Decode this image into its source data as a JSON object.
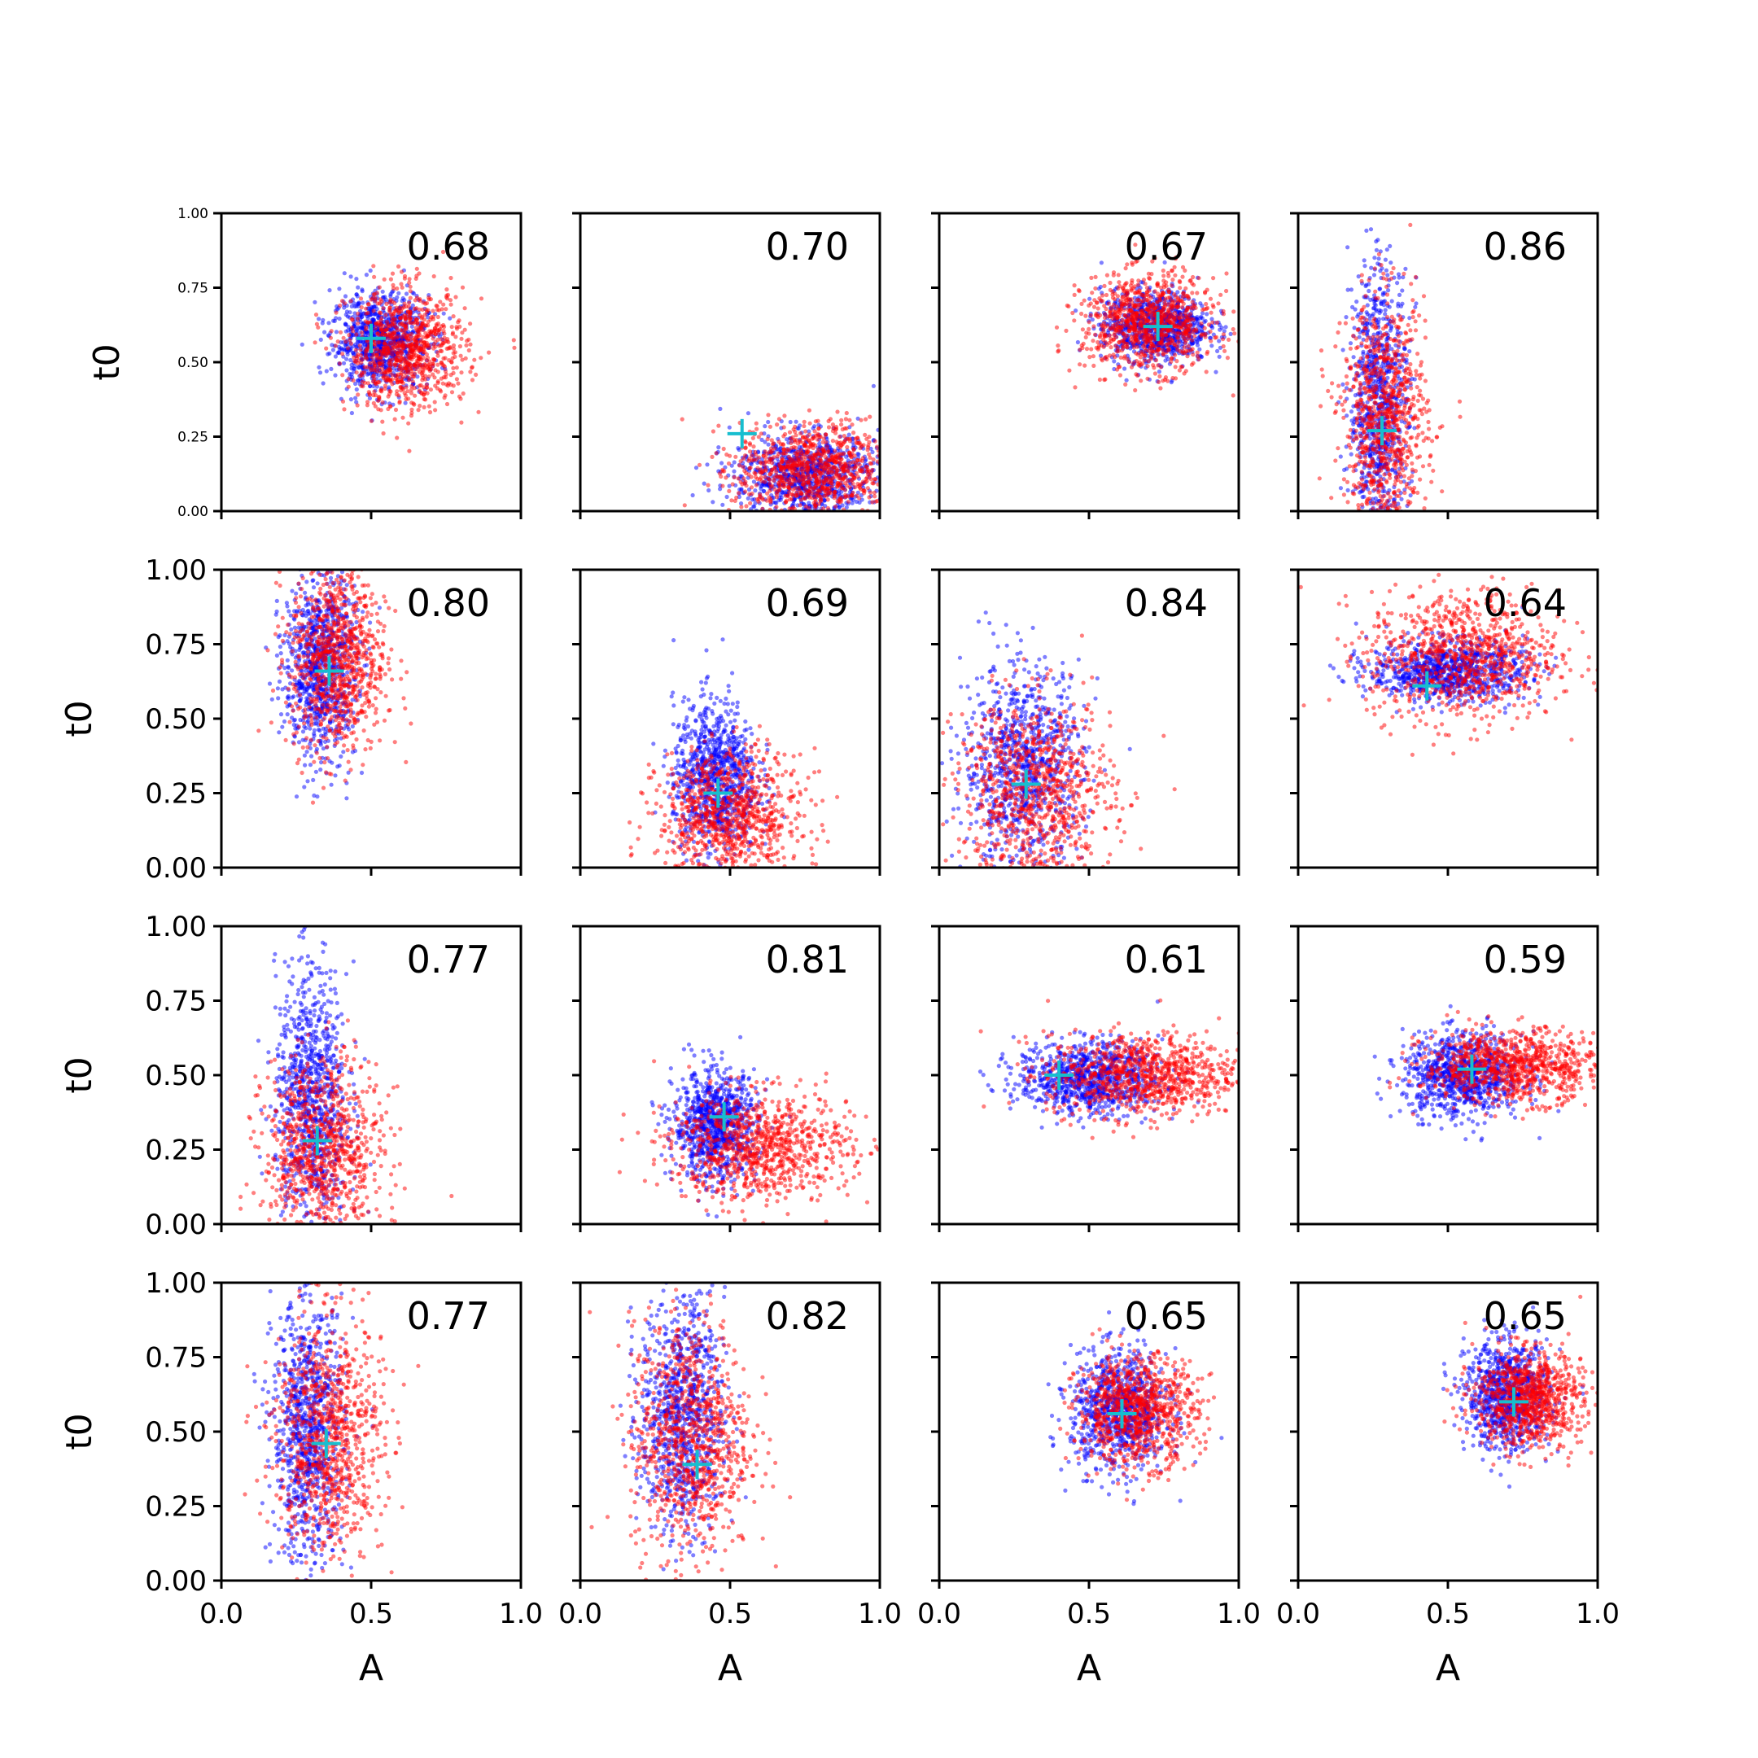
{
  "colors": {
    "series_blue": "#0000ff",
    "series_red": "#ff0000",
    "marker": "#17becf",
    "axes": "#000000"
  },
  "chart_data": {
    "type": "scatter",
    "layout": "4x4 grid of scatter panels, shared axes",
    "xlabel": "A",
    "ylabel": "t0",
    "xlim": [
      0.0,
      1.0
    ],
    "ylim": [
      0.0,
      1.0
    ],
    "xticks": [
      "0.0",
      "0.5",
      "1.0"
    ],
    "yticks": [
      "0.00",
      "0.25",
      "0.50",
      "0.75",
      "1.00"
    ],
    "grid": false,
    "series": [
      {
        "color": "#0000ff",
        "style": "small semi-transparent dots"
      },
      {
        "color": "#ff0000",
        "style": "small semi-transparent dots"
      }
    ],
    "panels": [
      {
        "value": "0.68",
        "marker": [
          0.5,
          0.58
        ],
        "blue": {
          "cx": 0.53,
          "cy": 0.57,
          "sx": 0.08,
          "sy": 0.08
        },
        "red": {
          "cx": 0.62,
          "cy": 0.54,
          "sx": 0.1,
          "sy": 0.1
        }
      },
      {
        "value": "0.70",
        "marker": [
          0.54,
          0.26
        ],
        "blue": {
          "cx": 0.75,
          "cy": 0.12,
          "sx": 0.12,
          "sy": 0.07
        },
        "red": {
          "cx": 0.78,
          "cy": 0.14,
          "sx": 0.13,
          "sy": 0.08
        }
      },
      {
        "value": "0.67",
        "marker": [
          0.73,
          0.62
        ],
        "blue": {
          "cx": 0.72,
          "cy": 0.62,
          "sx": 0.09,
          "sy": 0.06
        },
        "red": {
          "cx": 0.7,
          "cy": 0.63,
          "sx": 0.11,
          "sy": 0.08
        }
      },
      {
        "value": "0.86",
        "marker": [
          0.28,
          0.27
        ],
        "blue": {
          "cx": 0.27,
          "cy": 0.35,
          "sx": 0.05,
          "sy": 0.25
        },
        "red": {
          "cx": 0.29,
          "cy": 0.3,
          "sx": 0.07,
          "sy": 0.2
        }
      },
      {
        "value": "0.80",
        "marker": [
          0.36,
          0.66
        ],
        "blue": {
          "cx": 0.33,
          "cy": 0.68,
          "sx": 0.06,
          "sy": 0.16
        },
        "red": {
          "cx": 0.39,
          "cy": 0.7,
          "sx": 0.08,
          "sy": 0.16
        }
      },
      {
        "value": "0.69",
        "marker": [
          0.46,
          0.25
        ],
        "blue": {
          "cx": 0.45,
          "cy": 0.3,
          "sx": 0.07,
          "sy": 0.13
        },
        "red": {
          "cx": 0.5,
          "cy": 0.17,
          "sx": 0.12,
          "sy": 0.11
        }
      },
      {
        "value": "0.84",
        "marker": [
          0.29,
          0.28
        ],
        "blue": {
          "cx": 0.28,
          "cy": 0.34,
          "sx": 0.1,
          "sy": 0.17
        },
        "red": {
          "cx": 0.32,
          "cy": 0.25,
          "sx": 0.13,
          "sy": 0.16
        }
      },
      {
        "value": "0.64",
        "marker": [
          0.43,
          0.61
        ],
        "blue": {
          "cx": 0.5,
          "cy": 0.66,
          "sx": 0.13,
          "sy": 0.05
        },
        "red": {
          "cx": 0.55,
          "cy": 0.71,
          "sx": 0.16,
          "sy": 0.11
        }
      },
      {
        "value": "0.77",
        "marker": [
          0.32,
          0.28
        ],
        "blue": {
          "cx": 0.3,
          "cy": 0.42,
          "sx": 0.06,
          "sy": 0.22
        },
        "red": {
          "cx": 0.34,
          "cy": 0.24,
          "sx": 0.1,
          "sy": 0.16
        }
      },
      {
        "value": "0.81",
        "marker": [
          0.48,
          0.36
        ],
        "blue": {
          "cx": 0.45,
          "cy": 0.33,
          "sx": 0.07,
          "sy": 0.09
        },
        "red": {
          "cx": 0.6,
          "cy": 0.26,
          "sx": 0.15,
          "sy": 0.09
        }
      },
      {
        "value": "0.61",
        "marker": [
          0.4,
          0.5
        ],
        "blue": {
          "cx": 0.5,
          "cy": 0.49,
          "sx": 0.12,
          "sy": 0.06
        },
        "red": {
          "cx": 0.68,
          "cy": 0.5,
          "sx": 0.16,
          "sy": 0.07
        }
      },
      {
        "value": "0.59",
        "marker": [
          0.58,
          0.52
        ],
        "blue": {
          "cx": 0.55,
          "cy": 0.5,
          "sx": 0.1,
          "sy": 0.07
        },
        "red": {
          "cx": 0.72,
          "cy": 0.53,
          "sx": 0.15,
          "sy": 0.06
        }
      },
      {
        "value": "0.77",
        "marker": [
          0.35,
          0.46
        ],
        "blue": {
          "cx": 0.29,
          "cy": 0.5,
          "sx": 0.06,
          "sy": 0.22
        },
        "red": {
          "cx": 0.36,
          "cy": 0.48,
          "sx": 0.09,
          "sy": 0.2
        }
      },
      {
        "value": "0.82",
        "marker": [
          0.39,
          0.39
        ],
        "blue": {
          "cx": 0.34,
          "cy": 0.55,
          "sx": 0.07,
          "sy": 0.2
        },
        "red": {
          "cx": 0.37,
          "cy": 0.48,
          "sx": 0.1,
          "sy": 0.2
        }
      },
      {
        "value": "0.65",
        "marker": [
          0.61,
          0.56
        ],
        "blue": {
          "cx": 0.6,
          "cy": 0.57,
          "sx": 0.08,
          "sy": 0.1
        },
        "red": {
          "cx": 0.66,
          "cy": 0.57,
          "sx": 0.1,
          "sy": 0.09
        }
      },
      {
        "value": "0.65",
        "marker": [
          0.72,
          0.6
        ],
        "blue": {
          "cx": 0.7,
          "cy": 0.62,
          "sx": 0.07,
          "sy": 0.09
        },
        "red": {
          "cx": 0.77,
          "cy": 0.61,
          "sx": 0.09,
          "sy": 0.08
        }
      }
    ]
  }
}
